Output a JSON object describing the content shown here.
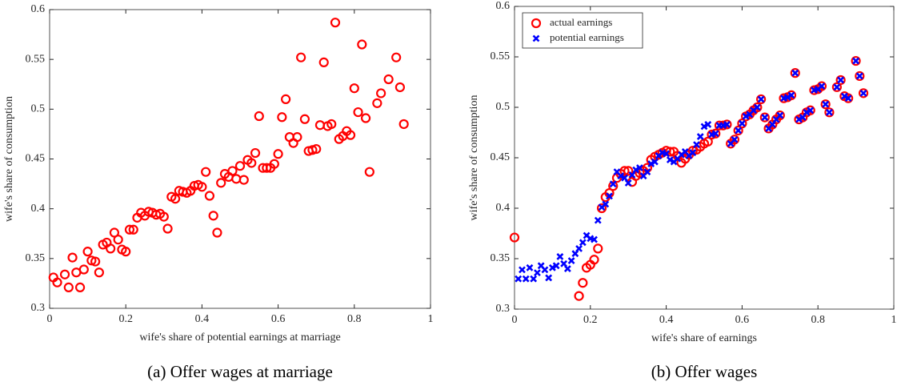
{
  "chart_data": [
    {
      "type": "scatter",
      "caption": "(a) Offer wages at marriage",
      "x_label": "wife's share of potential earnings at marriage",
      "y_label": "wife's share of consumption",
      "xlim": [
        0,
        1
      ],
      "xticks": [
        0,
        0.2,
        0.4,
        0.6,
        0.8,
        1
      ],
      "ylim": [
        0.3,
        0.6
      ],
      "yticks": [
        0.3,
        0.35,
        0.4,
        0.45,
        0.5,
        0.55,
        0.6
      ],
      "series": [
        {
          "color": "#ff0000",
          "marker": "o",
          "x": [
            0.01,
            0.02,
            0.04,
            0.05,
            0.06,
            0.07,
            0.08,
            0.09,
            0.1,
            0.11,
            0.12,
            0.13,
            0.14,
            0.15,
            0.16,
            0.17,
            0.18,
            0.19,
            0.2,
            0.21,
            0.22,
            0.23,
            0.24,
            0.25,
            0.26,
            0.27,
            0.28,
            0.29,
            0.3,
            0.31,
            0.32,
            0.33,
            0.34,
            0.35,
            0.36,
            0.37,
            0.38,
            0.39,
            0.4,
            0.41,
            0.42,
            0.43,
            0.44,
            0.45,
            0.46,
            0.47,
            0.48,
            0.49,
            0.5,
            0.51,
            0.52,
            0.53,
            0.54,
            0.55,
            0.56,
            0.57,
            0.58,
            0.59,
            0.6,
            0.61,
            0.62,
            0.63,
            0.64,
            0.65,
            0.66,
            0.67,
            0.68,
            0.69,
            0.7,
            0.71,
            0.72,
            0.73,
            0.74,
            0.75,
            0.76,
            0.77,
            0.78,
            0.79,
            0.8,
            0.81,
            0.82,
            0.83,
            0.84,
            0.86,
            0.87,
            0.89,
            0.91,
            0.92,
            0.93
          ],
          "values": [
            0.331,
            0.326,
            0.334,
            0.321,
            0.351,
            0.336,
            0.321,
            0.339,
            0.357,
            0.348,
            0.347,
            0.336,
            0.364,
            0.366,
            0.36,
            0.376,
            0.369,
            0.359,
            0.357,
            0.379,
            0.379,
            0.391,
            0.396,
            0.393,
            0.397,
            0.396,
            0.394,
            0.395,
            0.392,
            0.38,
            0.412,
            0.41,
            0.418,
            0.417,
            0.416,
            0.418,
            0.423,
            0.424,
            0.422,
            0.437,
            0.413,
            0.393,
            0.376,
            0.426,
            0.435,
            0.432,
            0.438,
            0.43,
            0.443,
            0.429,
            0.449,
            0.446,
            0.456,
            0.493,
            0.441,
            0.441,
            0.441,
            0.445,
            0.455,
            0.492,
            0.51,
            0.472,
            0.466,
            0.472,
            0.552,
            0.49,
            0.458,
            0.459,
            0.46,
            0.484,
            0.547,
            0.483,
            0.485,
            0.587,
            0.47,
            0.473,
            0.478,
            0.474,
            0.521,
            0.497,
            0.565,
            0.491,
            0.437,
            0.506,
            0.516,
            0.53,
            0.552,
            0.522,
            0.485
          ]
        }
      ]
    },
    {
      "type": "scatter",
      "caption": "(b) Offer wages",
      "x_label": "wife's share of earnings",
      "y_label": "wife's share of consumption",
      "xlim": [
        0,
        1
      ],
      "xticks": [
        0,
        0.2,
        0.4,
        0.6,
        0.8,
        1
      ],
      "ylim": [
        0.3,
        0.6
      ],
      "yticks": [
        0.3,
        0.35,
        0.4,
        0.45,
        0.5,
        0.55,
        0.6
      ],
      "legend": "upper-left",
      "series": [
        {
          "name": "actual earnings",
          "color": "#ff0000",
          "marker": "o",
          "x": [
            0.0,
            0.17,
            0.18,
            0.19,
            0.2,
            0.21,
            0.22,
            0.23,
            0.24,
            0.25,
            0.26,
            0.27,
            0.28,
            0.29,
            0.3,
            0.31,
            0.32,
            0.33,
            0.34,
            0.35,
            0.36,
            0.37,
            0.38,
            0.39,
            0.4,
            0.41,
            0.42,
            0.43,
            0.44,
            0.45,
            0.46,
            0.47,
            0.48,
            0.49,
            0.5,
            0.51,
            0.52,
            0.53,
            0.54,
            0.55,
            0.56,
            0.57,
            0.58,
            0.59,
            0.6,
            0.61,
            0.62,
            0.63,
            0.64,
            0.65,
            0.66,
            0.67,
            0.68,
            0.69,
            0.7,
            0.71,
            0.72,
            0.73,
            0.74,
            0.75,
            0.76,
            0.77,
            0.78,
            0.79,
            0.8,
            0.81,
            0.82,
            0.83,
            0.85,
            0.86,
            0.87,
            0.88,
            0.9,
            0.91,
            0.92
          ],
          "values": [
            0.371,
            0.313,
            0.326,
            0.341,
            0.344,
            0.349,
            0.36,
            0.4,
            0.411,
            0.415,
            0.422,
            0.43,
            0.434,
            0.437,
            0.437,
            0.426,
            0.432,
            0.435,
            0.437,
            0.44,
            0.448,
            0.451,
            0.453,
            0.455,
            0.457,
            0.456,
            0.456,
            0.452,
            0.445,
            0.449,
            0.453,
            0.457,
            0.458,
            0.461,
            0.464,
            0.466,
            0.473,
            0.474,
            0.482,
            0.482,
            0.483,
            0.464,
            0.468,
            0.477,
            0.484,
            0.491,
            0.493,
            0.497,
            0.5,
            0.508,
            0.49,
            0.479,
            0.483,
            0.488,
            0.492,
            0.509,
            0.51,
            0.512,
            0.534,
            0.488,
            0.49,
            0.495,
            0.497,
            0.517,
            0.518,
            0.521,
            0.503,
            0.495,
            0.52,
            0.527,
            0.511,
            0.509,
            0.546,
            0.531,
            0.514
          ]
        },
        {
          "name": "potential earnings",
          "color": "#0000ff",
          "marker": "x",
          "x": [
            0.01,
            0.02,
            0.03,
            0.04,
            0.05,
            0.06,
            0.07,
            0.08,
            0.09,
            0.1,
            0.11,
            0.12,
            0.13,
            0.14,
            0.15,
            0.16,
            0.17,
            0.18,
            0.19,
            0.2,
            0.21,
            0.22,
            0.23,
            0.24,
            0.25,
            0.26,
            0.27,
            0.28,
            0.29,
            0.3,
            0.31,
            0.32,
            0.33,
            0.34,
            0.35,
            0.36,
            0.37,
            0.38,
            0.39,
            0.4,
            0.41,
            0.42,
            0.43,
            0.44,
            0.45,
            0.46,
            0.47,
            0.48,
            0.49,
            0.5,
            0.51,
            0.52,
            0.53,
            0.54,
            0.55,
            0.56,
            0.57,
            0.58,
            0.59,
            0.6,
            0.61,
            0.62,
            0.63,
            0.64,
            0.65,
            0.66,
            0.67,
            0.68,
            0.69,
            0.7,
            0.71,
            0.72,
            0.73,
            0.74,
            0.75,
            0.76,
            0.77,
            0.78,
            0.79,
            0.8,
            0.81,
            0.82,
            0.83,
            0.85,
            0.86,
            0.87,
            0.88,
            0.9,
            0.91,
            0.92
          ],
          "values": [
            0.33,
            0.339,
            0.33,
            0.341,
            0.33,
            0.336,
            0.343,
            0.339,
            0.331,
            0.341,
            0.343,
            0.352,
            0.345,
            0.34,
            0.348,
            0.355,
            0.36,
            0.366,
            0.373,
            0.37,
            0.369,
            0.388,
            0.401,
            0.404,
            0.412,
            0.424,
            0.436,
            0.432,
            0.43,
            0.425,
            0.433,
            0.438,
            0.44,
            0.432,
            0.436,
            0.444,
            0.446,
            0.452,
            0.455,
            0.454,
            0.448,
            0.446,
            0.449,
            0.453,
            0.456,
            0.452,
            0.455,
            0.463,
            0.471,
            0.481,
            0.483,
            0.473,
            0.474,
            0.482,
            0.482,
            0.483,
            0.464,
            0.468,
            0.477,
            0.484,
            0.491,
            0.493,
            0.497,
            0.5,
            0.508,
            0.49,
            0.479,
            0.483,
            0.488,
            0.492,
            0.509,
            0.51,
            0.512,
            0.534,
            0.488,
            0.49,
            0.495,
            0.497,
            0.517,
            0.518,
            0.521,
            0.503,
            0.495,
            0.52,
            0.527,
            0.511,
            0.509,
            0.546,
            0.531,
            0.514
          ]
        }
      ]
    }
  ]
}
